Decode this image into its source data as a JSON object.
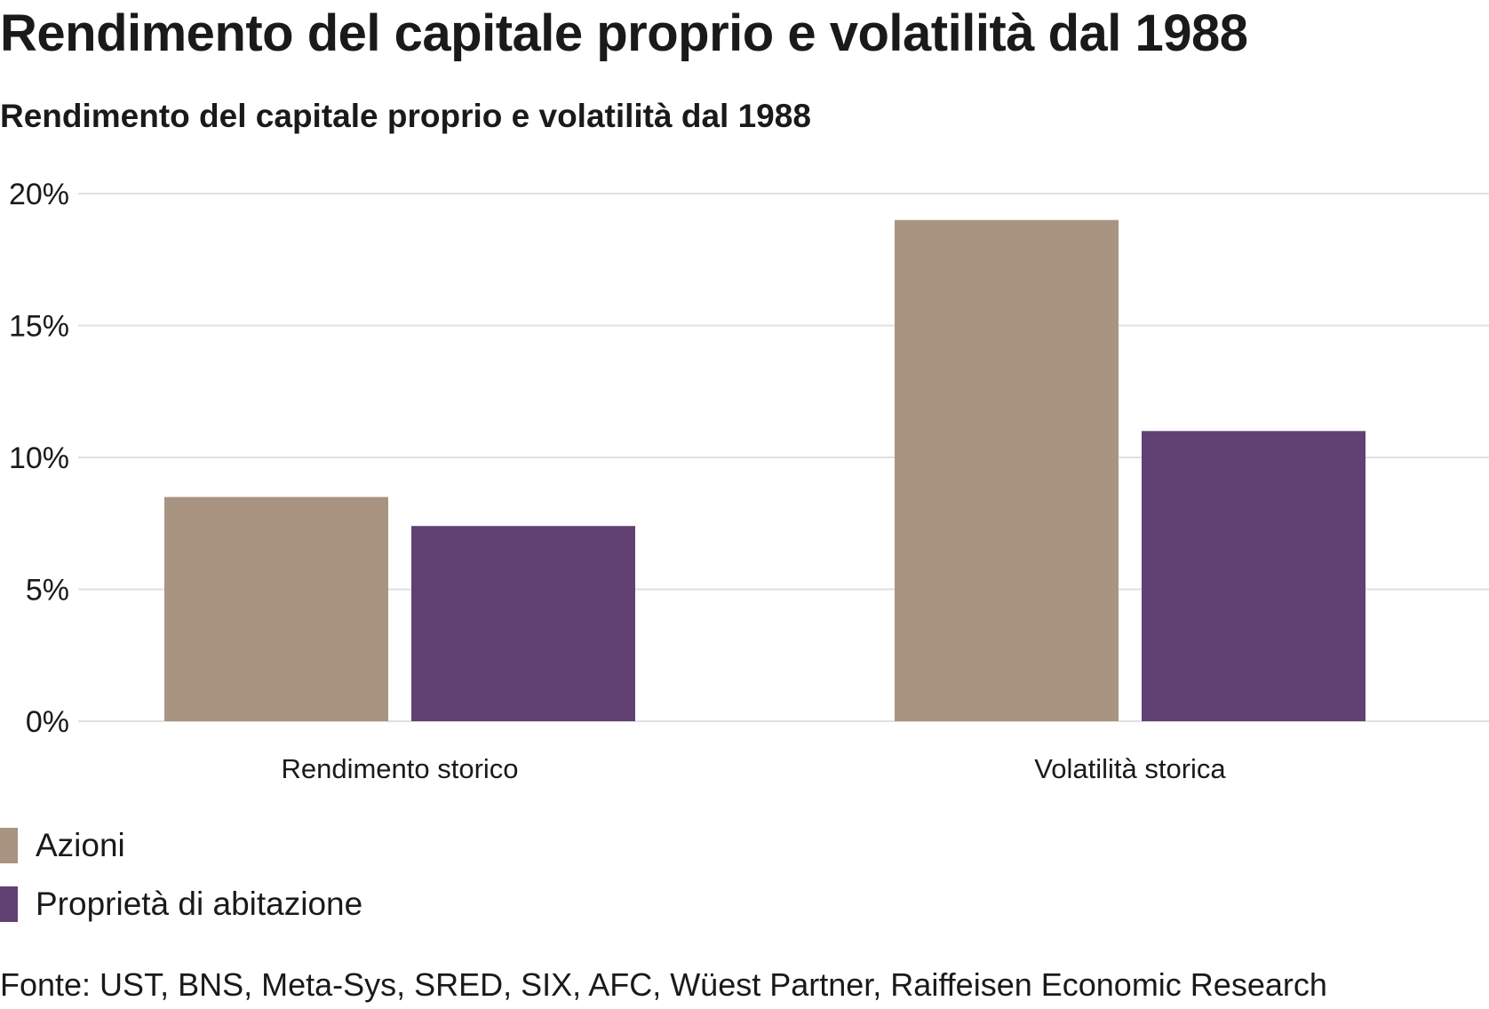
{
  "title": "Rendimento del capitale proprio e volatilità dal 1988",
  "subtitle": "Rendimento del capitale proprio e volatilità dal 1988",
  "source": "Fonte: UST, BNS, Meta-Sys, SRED, SIX, AFC, Wüest Partner, Raiffeisen Economic Research",
  "colors": {
    "azioni": "#a89480",
    "proprieta": "#614173",
    "grid": "#e0e0e0",
    "text": "#1a1a1a"
  },
  "chart_data": {
    "type": "bar",
    "title": "Rendimento del capitale proprio e volatilità dal 1988",
    "xlabel": "",
    "ylabel": "",
    "categories": [
      "Rendimento storico",
      "Volatilità storica"
    ],
    "series": [
      {
        "name": "Azioni",
        "values": [
          8.5,
          19.0
        ],
        "color": "#a89480"
      },
      {
        "name": "Proprietà di abitazione",
        "values": [
          7.4,
          11.0
        ],
        "color": "#614173"
      }
    ],
    "ylim": [
      0,
      20
    ],
    "yticks": [
      0,
      5,
      10,
      15,
      20
    ],
    "ytick_labels": [
      "0%",
      "5%",
      "10%",
      "15%",
      "20%"
    ],
    "grid": true,
    "legend_position": "bottom-left"
  }
}
